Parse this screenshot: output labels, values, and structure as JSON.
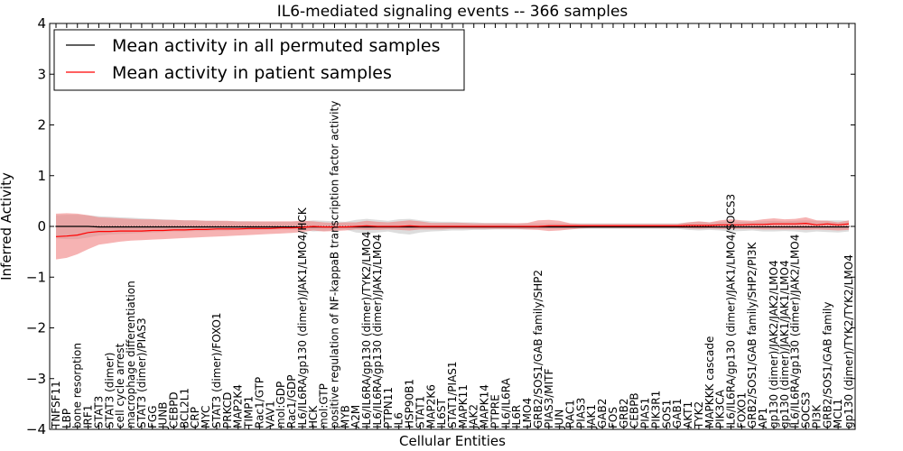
{
  "chart_data": {
    "type": "line",
    "title": "IL6-mediated signaling events -- 366 samples",
    "xlabel": "Cellular Entities",
    "ylabel": "Inferred Activity",
    "ylim": [
      -4,
      4
    ],
    "yticks": [
      -4,
      -3,
      -2,
      -1,
      0,
      1,
      2,
      3,
      4
    ],
    "legend_position": "top-left",
    "categories": [
      "TNFSF11",
      "LBP",
      "bone resorption",
      "IRF1",
      "STAT3",
      "STAT3 (dimer)",
      "cell cycle arrest",
      "macrophage differentiation",
      "STAT3 (dimer)/PIAS3",
      "FGG",
      "JUNB",
      "CEBPD",
      "BCL2L1",
      "CRP",
      "MYC",
      "STAT3 (dimer)/FOXO1",
      "PRKCD",
      "MAP2K4",
      "TIMP1",
      "Rac1/GTP",
      "VAV1",
      "mol:GDP",
      "Rac1/GDP",
      "IL6/IL6RA/gp130 (dimer)/JAK1/LMO4/HCK",
      "HCK",
      "mol:GTP",
      "positive regulation of NF-kappaB transcription factor activity",
      "MYB",
      "A2M",
      "IL6/IL6RA/gp130 (dimer)/TYK2/LMO4",
      "IL6/IL6RA/gp130 (dimer)/JAK1/LMO4",
      "PTPN11",
      "IL6",
      "HSP90B1",
      "STAT1",
      "MAP2K6",
      "IL6ST",
      "STAT1/PIAS1",
      "MAPK11",
      "JAK2",
      "MAPK14",
      "PTPRE",
      "IL6/IL6RA",
      "IL6R",
      "LMO4",
      "GRB2/SOS1/GAB family/SHP2",
      "PIAS3/MITF",
      "JUN",
      "RAC1",
      "PIAS3",
      "JAK1",
      "GAB2",
      "FOS",
      "GRB2",
      "CEBPB",
      "PIAS1",
      "PIK3R1",
      "SOS1",
      "GAB1",
      "AKT1",
      "TYK2",
      "MAPKKK cascade",
      "PIK3CA",
      "IL6/IL6RA/gp130 (dimer)/JAK1/LMO4/SOCS3",
      "FOXO1",
      "GRB2/SOS1/GAB family/SHP2/PI3K",
      "AP1",
      "gp130 (dimer)/JAK2/JAK2/LMO4",
      "gp130 (dimer)/JAK1/JAK1/LMO4",
      "IL6/IL6RA/gp130 (dimer)/JAK2/LMO4",
      "SOCS3",
      "PI3K",
      "GRB2/SOS1/GAB family",
      "MCL1",
      "gp130 (dimer)/TYK2/TYK2/LMO4"
    ],
    "series": [
      {
        "name": "Mean activity in all permuted samples",
        "color": "#000000",
        "values": [
          0.0,
          0.0,
          0.0,
          0.0,
          -0.01,
          -0.01,
          -0.01,
          -0.01,
          -0.01,
          -0.01,
          -0.01,
          -0.01,
          -0.01,
          -0.01,
          -0.01,
          -0.01,
          -0.01,
          -0.01,
          -0.01,
          -0.01,
          -0.01,
          -0.01,
          -0.01,
          -0.01,
          -0.01,
          -0.01,
          -0.01,
          -0.01,
          -0.01,
          -0.01,
          -0.01,
          -0.01,
          -0.01,
          -0.01,
          -0.01,
          -0.01,
          -0.01,
          -0.01,
          -0.01,
          -0.01,
          -0.01,
          -0.01,
          -0.01,
          -0.01,
          -0.01,
          -0.01,
          -0.01,
          -0.01,
          -0.01,
          -0.01,
          -0.01,
          -0.01,
          -0.01,
          -0.01,
          -0.01,
          -0.01,
          -0.01,
          -0.01,
          -0.01,
          -0.01,
          -0.01,
          -0.01,
          -0.01,
          -0.01,
          -0.01,
          -0.01,
          -0.01,
          -0.01,
          -0.01,
          -0.01,
          -0.01,
          -0.01,
          -0.01,
          -0.01,
          -0.01
        ],
        "band_lower": [
          -0.24,
          -0.25,
          -0.25,
          -0.22,
          -0.18,
          -0.16,
          -0.15,
          -0.14,
          -0.13,
          -0.12,
          -0.11,
          -0.1,
          -0.1,
          -0.09,
          -0.09,
          -0.08,
          -0.08,
          -0.07,
          -0.07,
          -0.07,
          -0.06,
          -0.06,
          -0.06,
          -0.07,
          -0.1,
          -0.09,
          -0.08,
          -0.06,
          -0.12,
          -0.14,
          -0.12,
          -0.1,
          -0.14,
          -0.16,
          -0.12,
          -0.1,
          -0.09,
          -0.08,
          -0.08,
          -0.07,
          -0.07,
          -0.06,
          -0.06,
          -0.06,
          -0.06,
          -0.05,
          -0.05,
          -0.05,
          -0.05,
          -0.05,
          -0.05,
          -0.05,
          -0.05,
          -0.05,
          -0.05,
          -0.05,
          -0.05,
          -0.05,
          -0.05,
          -0.07,
          -0.08,
          -0.07,
          -0.08,
          -0.1,
          -0.09,
          -0.08,
          -0.1,
          -0.1,
          -0.09,
          -0.1,
          -0.12,
          -0.1,
          -0.11,
          -0.12,
          -0.1
        ],
        "band_upper": [
          0.22,
          0.23,
          0.23,
          0.22,
          0.2,
          0.19,
          0.18,
          0.17,
          0.16,
          0.15,
          0.14,
          0.13,
          0.12,
          0.12,
          0.11,
          0.11,
          0.1,
          0.1,
          0.1,
          0.09,
          0.09,
          0.09,
          0.09,
          0.1,
          0.12,
          0.11,
          0.1,
          0.09,
          0.13,
          0.15,
          0.13,
          0.11,
          0.14,
          0.15,
          0.12,
          0.1,
          0.09,
          0.09,
          0.08,
          0.08,
          0.07,
          0.07,
          0.07,
          0.06,
          0.06,
          0.06,
          0.06,
          0.06,
          0.06,
          0.06,
          0.06,
          0.06,
          0.06,
          0.06,
          0.06,
          0.06,
          0.06,
          0.06,
          0.06,
          0.08,
          0.09,
          0.08,
          0.09,
          0.1,
          0.09,
          0.09,
          0.1,
          0.11,
          0.1,
          0.11,
          0.12,
          0.11,
          0.12,
          0.12,
          0.11
        ]
      },
      {
        "name": "Mean activity in patient samples",
        "color": "#ff0000",
        "values": [
          -0.2,
          -0.19,
          -0.17,
          -0.12,
          -0.1,
          -0.1,
          -0.09,
          -0.09,
          -0.09,
          -0.08,
          -0.08,
          -0.07,
          -0.07,
          -0.06,
          -0.06,
          -0.05,
          -0.05,
          -0.05,
          -0.04,
          -0.04,
          -0.04,
          -0.03,
          -0.03,
          -0.02,
          0.0,
          -0.01,
          -0.01,
          -0.01,
          0.0,
          0.01,
          0.0,
          0.0,
          0.0,
          0.01,
          0.0,
          0.0,
          0.0,
          0.0,
          0.0,
          0.0,
          0.0,
          0.0,
          0.0,
          0.0,
          0.0,
          0.0,
          0.01,
          0.01,
          0.01,
          0.01,
          0.01,
          0.01,
          0.01,
          0.01,
          0.01,
          0.01,
          0.01,
          0.01,
          0.01,
          0.02,
          0.02,
          0.02,
          0.03,
          0.03,
          0.03,
          0.04,
          0.04,
          0.05,
          0.05,
          0.05,
          0.06,
          0.03,
          0.05,
          0.03,
          0.05
        ],
        "band_lower": [
          -0.65,
          -0.62,
          -0.55,
          -0.45,
          -0.36,
          -0.33,
          -0.3,
          -0.28,
          -0.27,
          -0.26,
          -0.25,
          -0.24,
          -0.23,
          -0.22,
          -0.21,
          -0.2,
          -0.19,
          -0.18,
          -0.17,
          -0.16,
          -0.15,
          -0.14,
          -0.13,
          -0.11,
          -0.08,
          -0.1,
          -0.09,
          -0.08,
          -0.06,
          -0.07,
          -0.07,
          -0.06,
          -0.07,
          -0.08,
          -0.06,
          -0.06,
          -0.06,
          -0.05,
          -0.05,
          -0.05,
          -0.05,
          -0.05,
          -0.05,
          -0.05,
          -0.06,
          -0.07,
          -0.09,
          -0.08,
          -0.06,
          -0.04,
          -0.03,
          -0.03,
          -0.03,
          -0.03,
          -0.03,
          -0.03,
          -0.03,
          -0.03,
          -0.03,
          -0.04,
          -0.05,
          -0.04,
          -0.05,
          -0.05,
          -0.05,
          -0.05,
          -0.06,
          -0.06,
          -0.06,
          -0.06,
          -0.07,
          -0.06,
          -0.07,
          -0.08,
          -0.07
        ],
        "band_upper": [
          0.25,
          0.26,
          0.25,
          0.22,
          0.18,
          0.17,
          0.16,
          0.15,
          0.14,
          0.14,
          0.13,
          0.13,
          0.12,
          0.12,
          0.11,
          0.11,
          0.11,
          0.1,
          0.1,
          0.1,
          0.1,
          0.1,
          0.1,
          0.11,
          0.1,
          0.08,
          0.07,
          0.08,
          0.08,
          0.11,
          0.09,
          0.08,
          0.1,
          0.12,
          0.1,
          0.07,
          0.07,
          0.07,
          0.07,
          0.06,
          0.06,
          0.06,
          0.06,
          0.06,
          0.07,
          0.12,
          0.13,
          0.11,
          0.06,
          0.05,
          0.05,
          0.05,
          0.05,
          0.05,
          0.05,
          0.05,
          0.05,
          0.05,
          0.05,
          0.08,
          0.1,
          0.08,
          0.12,
          0.14,
          0.12,
          0.11,
          0.14,
          0.16,
          0.14,
          0.15,
          0.18,
          0.12,
          0.11,
          0.08,
          0.12
        ]
      }
    ]
  }
}
